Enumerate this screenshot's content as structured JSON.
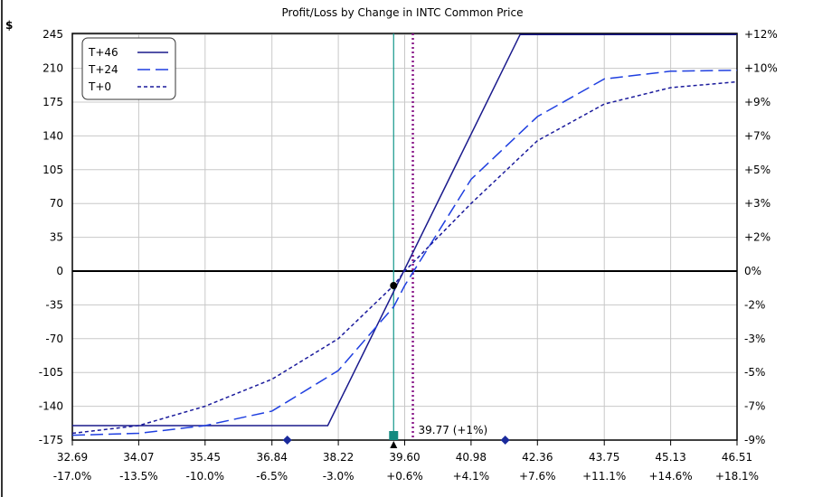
{
  "chart_data": {
    "type": "line",
    "title": "Profit/Loss by Change in INTC Common Price",
    "ylabel": "$",
    "ylim": [
      -175,
      245
    ],
    "xlim": [
      32.69,
      46.51
    ],
    "grid": true,
    "legend_placement": "top-left",
    "y_ticks": [
      245,
      210,
      175,
      140,
      105,
      70,
      35,
      0,
      -35,
      -70,
      -105,
      -140,
      -175
    ],
    "y_right_ticks": [
      "+12%",
      "+10%",
      "+9%",
      "+7%",
      "+5%",
      "+3%",
      "+2%",
      "0%",
      "-2%",
      "-3%",
      "-5%",
      "-7%",
      "-9%"
    ],
    "x_ticks": [
      "32.69",
      "34.07",
      "35.45",
      "36.84",
      "38.22",
      "39.60",
      "40.98",
      "42.36",
      "43.75",
      "45.13",
      "46.51"
    ],
    "x_pct_ticks": [
      "-17.0%",
      "-13.5%",
      "-10.0%",
      "-6.5%",
      "-3.0%",
      "+0.6%",
      "+4.1%",
      "+7.6%",
      "+11.1%",
      "+14.6%",
      "+18.1%"
    ],
    "current_price": 39.37,
    "marker_price": 39.77,
    "marker_label": "39.77 (+1%)",
    "diamonds": [
      37.16,
      41.69
    ],
    "series": [
      {
        "name": "T+46",
        "style": "solid",
        "color": "#1a1a8c",
        "x": [
          32.69,
          38.0,
          42.0,
          46.51
        ],
        "y": [
          -160,
          -160,
          245,
          245
        ]
      },
      {
        "name": "T+24",
        "style": "longdash",
        "color": "#1f3fe0",
        "x": [
          32.69,
          34.07,
          35.45,
          36.84,
          38.22,
          39.37,
          39.6,
          40.98,
          42.36,
          43.75,
          45.13,
          46.51
        ],
        "y": [
          -170,
          -168,
          -160,
          -145,
          -103,
          -37,
          -15,
          95,
          160,
          199,
          207,
          208
        ]
      },
      {
        "name": "T+0",
        "style": "dotted",
        "color": "#1a1a9c",
        "x": [
          32.69,
          34.07,
          35.45,
          36.84,
          38.22,
          39.37,
          39.6,
          40.98,
          42.36,
          43.75,
          45.13,
          46.51
        ],
        "y": [
          -168,
          -160,
          -140,
          -112,
          -70,
          -15,
          0,
          70,
          135,
          173,
          190,
          196
        ]
      }
    ]
  }
}
